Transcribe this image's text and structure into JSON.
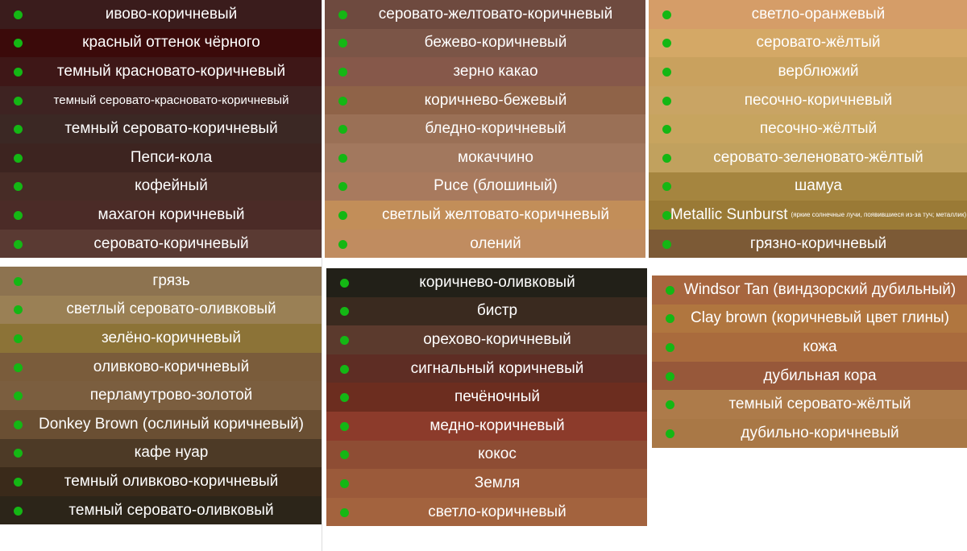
{
  "panels": [
    {
      "colors": [
        {
          "name": "ивово-коричневый",
          "color": "#3a1c1c"
        },
        {
          "name": "красный оттенок чёрного",
          "color": "#3b0a0a"
        },
        {
          "name": "темный красновато-коричневый",
          "color": "#3e1717"
        },
        {
          "name": "темный серовато-красновато-коричневый",
          "color": "#3e2322"
        },
        {
          "name": "темный серовато-коричневый",
          "color": "#3b2824"
        },
        {
          "name": "Пепси-кола",
          "color": "#3d2420"
        },
        {
          "name": "кофейный",
          "color": "#472c26"
        },
        {
          "name": "махагон коричневый",
          "color": "#4b2b27"
        },
        {
          "name": "серовато-коричневый",
          "color": "#5a3a33"
        }
      ]
    },
    {
      "colors": [
        {
          "name": "серовато-желтовато-коричневый",
          "color": "#6e4a3f"
        },
        {
          "name": "бежево-коричневый",
          "color": "#7b5547"
        },
        {
          "name": "зерно какао",
          "color": "#86584a"
        },
        {
          "name": "коричнево-бежевый",
          "color": "#8f6348"
        },
        {
          "name": "бледно-коричневый",
          "color": "#9a7056"
        },
        {
          "name": "мокаччино",
          "color": "#a2785e"
        },
        {
          "name": "Puce (блошиный)",
          "color": "#a87a5e"
        },
        {
          "name": "светлый желтовато-коричневый",
          "color": "#c28e59"
        },
        {
          "name": "олений",
          "color": "#c08c60"
        }
      ]
    },
    {
      "colors": [
        {
          "name": "светло-оранжевый",
          "color": "#d59d68"
        },
        {
          "name": "серовато-жёлтый",
          "color": "#d4a866"
        },
        {
          "name": "верблюжий",
          "color": "#c9a15e"
        },
        {
          "name": "песочно-коричневый",
          "color": "#c9a464"
        },
        {
          "name": "песочно-жёлтый",
          "color": "#c7a45f"
        },
        {
          "name": "серовато-зеленовато-жёлтый",
          "color": "#c1a15e"
        },
        {
          "name": "шамуа",
          "color": "#a5853f"
        },
        {
          "name": "Metallic Sunburst",
          "note": "(яркие солнечные лучи, появившиеся из-за туч; металлик)",
          "color": "#9a7a36"
        },
        {
          "name": "грязно-коричневый",
          "color": "#7c5a36"
        }
      ]
    },
    {
      "colors": [
        {
          "name": "грязь",
          "color": "#8d7350"
        },
        {
          "name": "светлый серовато-оливковый",
          "color": "#9a8055"
        },
        {
          "name": "зелёно-коричневый",
          "color": "#8c7337"
        },
        {
          "name": "оливково-коричневый",
          "color": "#7a5c3b"
        },
        {
          "name": "перламутрово-золотой",
          "color": "#7b5e3f"
        },
        {
          "name": "Donkey Brown (ослиный коричневый)",
          "color": "#6a4f33"
        },
        {
          "name": "кафе нуар",
          "color": "#4d3a26"
        },
        {
          "name": "темный оливково-коричневый",
          "color": "#3a2a1a"
        },
        {
          "name": "темный серовато-оливковый",
          "color": "#2c2519"
        }
      ]
    },
    {
      "colors": [
        {
          "name": "коричнево-оливковый",
          "color": "#222018"
        },
        {
          "name": "бистр",
          "color": "#3a2a1f"
        },
        {
          "name": "орехово-коричневый",
          "color": "#5b3a2d"
        },
        {
          "name": "сигнальный коричневый",
          "color": "#5e2d24"
        },
        {
          "name": "печёночный",
          "color": "#6c2d1f"
        },
        {
          "name": "медно-коричневый",
          "color": "#8c3b2b"
        },
        {
          "name": "кокос",
          "color": "#8e4d34"
        },
        {
          "name": "Земля",
          "color": "#9b5a3a"
        },
        {
          "name": "светло-коричневый",
          "color": "#a3633e"
        }
      ]
    },
    {
      "colors": [
        {
          "name": "Windsor Tan (виндзорский дубильный)",
          "color": "#a7663f"
        },
        {
          "name": "Clay brown (коричневый цвет глины)",
          "color": "#b0763f"
        },
        {
          "name": "кожа",
          "color": "#a96b3d"
        },
        {
          "name": "дубильная кора",
          "color": "#97583a"
        },
        {
          "name": "темный серовато-жёлтый",
          "color": "#ad7b4a"
        },
        {
          "name": "дубильно-коричневый",
          "color": "#a97846"
        }
      ]
    }
  ]
}
